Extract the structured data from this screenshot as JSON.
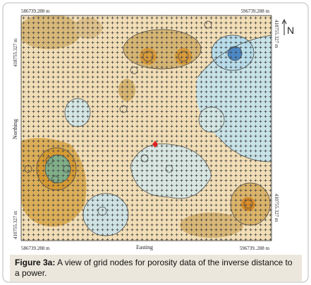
{
  "map": {
    "top_left": "586739.288 m",
    "top_right": "596739.288 m",
    "left_top": "418755.327 m",
    "right_top": "418755.327 m",
    "left_bottom": "410755.327 m",
    "right_bottom": "410755.327 m",
    "bottom_left": "586739.288 m",
    "bottom_right": "596739..288 m",
    "y_axis": "Northing",
    "x_axis": "Easting",
    "north": "N"
  },
  "caption": {
    "label": "Figure 3a:",
    "text": "A view of grid nodes for porosity data of the inverse distance to a power."
  }
}
